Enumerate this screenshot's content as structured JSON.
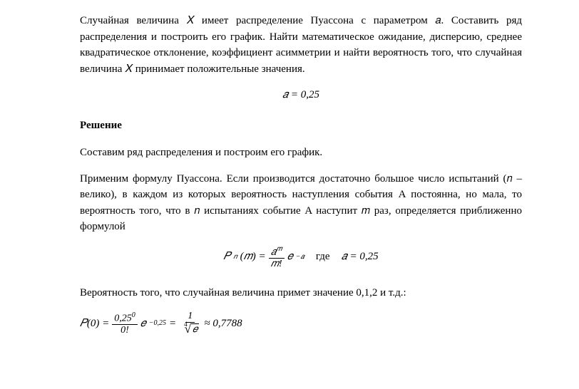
{
  "problem": {
    "statement": "Случайная величина 𝑋 имеет распределение Пуассона с параметром 𝑎. Составить ряд распределения и построить его график. Найти математическое ожидание, дисперсию, среднее квадратическое отклонение, коэффициент асимметрии и найти вероятность того, что случайная величина 𝑋 принимает положительные значения.",
    "given_formula": "𝑎 = 0,25"
  },
  "solution": {
    "heading": "Решение",
    "intro": "Составим ряд распределения и построим его график.",
    "poisson_explain": "Применим формулу Пуассона. Если производится достаточно большое число испытаний (𝑛 – велико), в каждом из которых вероятность наступления события A постоянна, но мала, то вероятность того, что в 𝑛 испытаниях событие A наступит 𝑚  раз, определяется приближенно формулой",
    "pn_label": "𝑃",
    "pn_sub": "𝑛",
    "pn_arg": "(𝑚) =",
    "frac_num": "𝑎",
    "frac_num_sup": "𝑚",
    "frac_den": "𝑚!",
    "e_part": "𝑒",
    "e_sup": "−𝑎",
    "where_label": "где",
    "where_val": "𝑎 = 0,25",
    "prob_intro": "Вероятность того, что случайная величина примет значение 0,1,2 и т.д.:",
    "p0_lhs": "𝑃(0) =",
    "p0_num1": "0,25",
    "p0_num1_sup": "0",
    "p0_den1": "0!",
    "p0_e": "𝑒",
    "p0_e_sup": "−0,25",
    "eq": "=",
    "p0_num2": "1",
    "p0_root_index": "4",
    "p0_radicand": "𝑒",
    "approx": "≈ 0,7788"
  },
  "style": {
    "text_color": "#000000",
    "background": "#ffffff",
    "body_fontsize": 15,
    "font_family": "Times New Roman"
  }
}
